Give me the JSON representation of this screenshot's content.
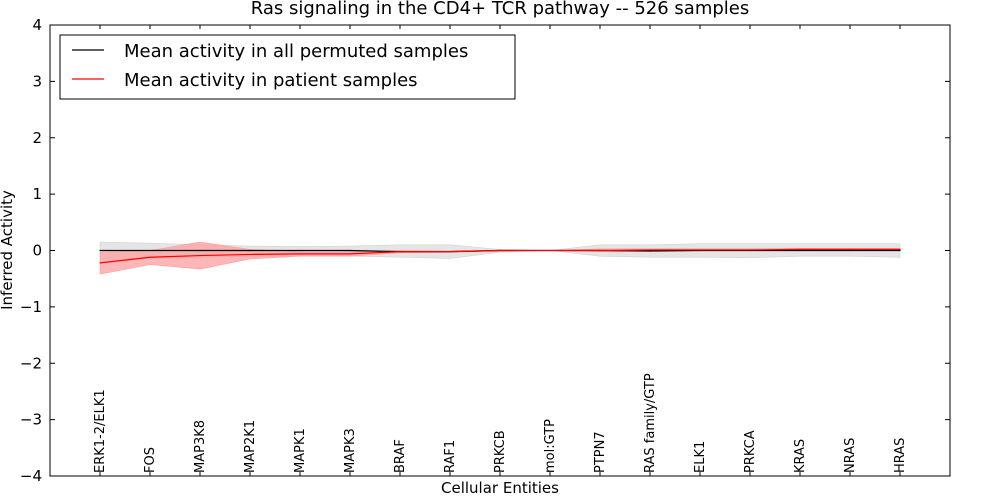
{
  "chart_data": {
    "type": "line",
    "title": "Ras signaling in the CD4+ TCR pathway -- 526 samples",
    "xlabel": "Cellular Entities",
    "ylabel": "Inferred Activity",
    "ylim": [
      -4,
      4
    ],
    "yticks": [
      -4,
      -3,
      -2,
      -1,
      0,
      1,
      2,
      3,
      4
    ],
    "ytick_labels": [
      "−4",
      "−3",
      "−2",
      "−1",
      "0",
      "1",
      "2",
      "3",
      "4"
    ],
    "categories": [
      "ERK1-2/ELK1",
      "FOS",
      "MAP3K8",
      "MAP2K1",
      "MAPK1",
      "MAPK3",
      "BRAF",
      "RAF1",
      "PRKCB",
      "mol:GTP",
      "PTPN7",
      "RAS family/GTP",
      "ELK1",
      "PRKCA",
      "KRAS",
      "NRAS",
      "HRAS"
    ],
    "legend_position": "top-left",
    "series": [
      {
        "name": "Mean activity in all permuted samples",
        "color": "#000000",
        "band_color": "#d3d3d3",
        "values": [
          0.0,
          0.0,
          0.0,
          0.0,
          0.0,
          0.0,
          -0.02,
          -0.02,
          0.0,
          0.0,
          0.0,
          -0.01,
          0.0,
          0.0,
          0.0,
          0.0,
          0.0
        ],
        "band_low": [
          -0.15,
          -0.15,
          -0.12,
          -0.1,
          -0.1,
          -0.1,
          -0.12,
          -0.14,
          -0.03,
          0.0,
          -0.1,
          -0.12,
          -0.12,
          -0.13,
          -0.1,
          -0.1,
          -0.12
        ],
        "band_high": [
          0.15,
          0.13,
          0.1,
          0.08,
          0.07,
          0.08,
          0.1,
          0.1,
          0.02,
          0.0,
          0.1,
          0.1,
          0.12,
          0.12,
          0.12,
          0.12,
          0.12
        ]
      },
      {
        "name": "Mean activity in patient samples",
        "color": "#ff0000",
        "band_color": "#ff9e9e",
        "values": [
          -0.22,
          -0.12,
          -0.09,
          -0.07,
          -0.06,
          -0.06,
          -0.02,
          -0.02,
          0.0,
          0.0,
          0.0,
          0.01,
          0.01,
          0.01,
          0.02,
          0.02,
          0.02
        ],
        "band_low": [
          -0.42,
          -0.25,
          -0.33,
          -0.15,
          -0.1,
          -0.1,
          -0.04,
          -0.03,
          -0.01,
          0.0,
          -0.02,
          -0.01,
          0.0,
          0.0,
          0.01,
          0.01,
          0.01
        ],
        "band_high": [
          -0.03,
          0.0,
          0.15,
          0.02,
          -0.02,
          -0.02,
          0.0,
          -0.01,
          0.01,
          0.0,
          0.03,
          0.03,
          0.03,
          0.03,
          0.04,
          0.04,
          0.04
        ]
      }
    ]
  }
}
